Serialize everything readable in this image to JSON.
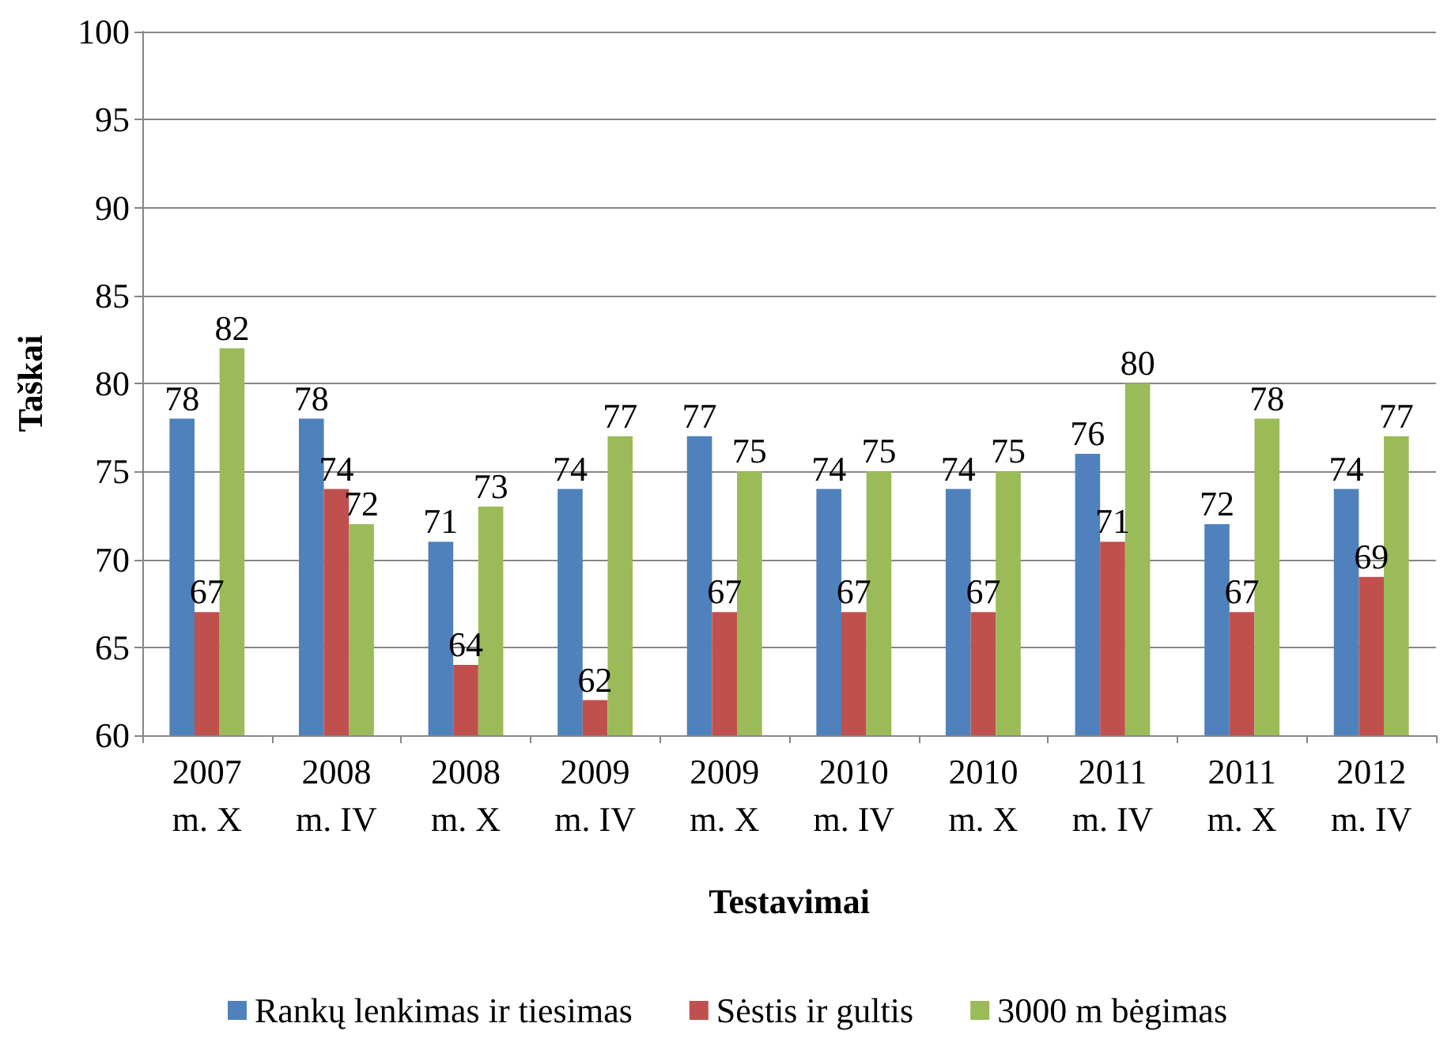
{
  "chart_data": {
    "type": "bar",
    "xlabel": "Testavimai",
    "ylabel": "Taškai",
    "categories": [
      "2007\nm. X",
      "2008\nm. IV",
      "2008\nm. X",
      "2009\nm. IV",
      "2009\nm. X",
      "2010\nm. IV",
      "2010\nm. X",
      "2011\nm. IV",
      "2011\nm. X",
      "2012\nm. IV"
    ],
    "series": [
      {
        "name": "Rankų lenkimas ir tiesimas",
        "color": "#4f81bd",
        "values": [
          78,
          78,
          71,
          74,
          77,
          74,
          74,
          76,
          72,
          74
        ]
      },
      {
        "name": "Sėstis ir gultis",
        "color": "#c0504d",
        "values": [
          67,
          74,
          64,
          62,
          67,
          67,
          67,
          71,
          67,
          69
        ]
      },
      {
        "name": "3000 m bėgimas",
        "color": "#9bbb59",
        "values": [
          82,
          72,
          73,
          77,
          75,
          75,
          75,
          80,
          78,
          77
        ]
      }
    ],
    "ylim": [
      60,
      100
    ],
    "yticks": [
      60,
      65,
      70,
      75,
      80,
      85,
      90,
      95,
      100
    ],
    "grid": "y",
    "legend": "bottom",
    "data_labels": true
  }
}
